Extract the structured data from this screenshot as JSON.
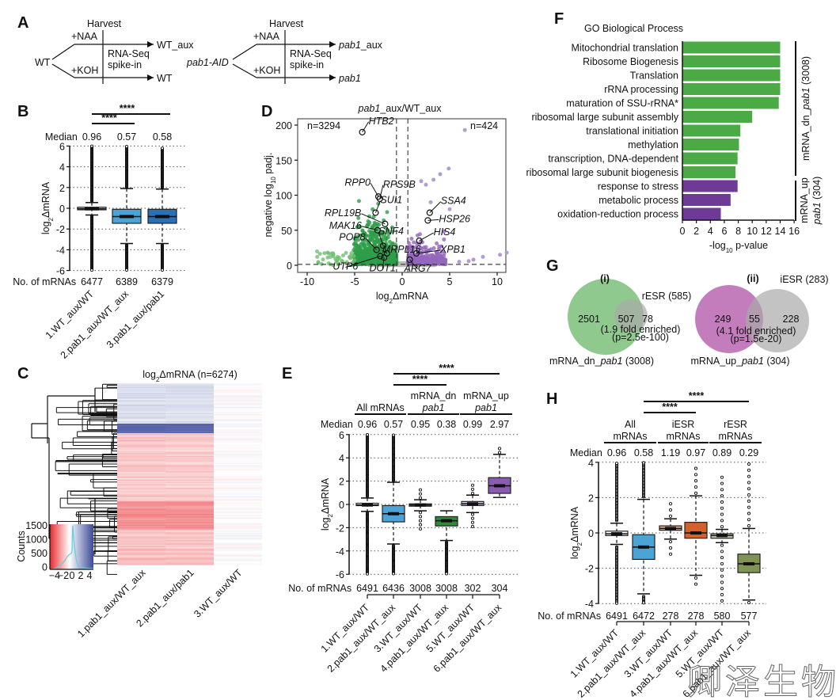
{
  "labels": [
    "A",
    "B",
    "C",
    "D",
    "E",
    "F",
    "G",
    "H"
  ],
  "panel_a": {
    "harvest": "Harvest",
    "naa": "+NAA",
    "koh": "+KOH",
    "wt": "WT",
    "wt_aux": "WT_aux",
    "wt_out": "WT",
    "rnaseq": "RNA-Seq",
    "spikein": "spike-in",
    "pab1_aid": "pab1-AID",
    "pab1_aux_pre": "pab1",
    "pab1_aux_post": "_aux",
    "pab1_out": "pab1"
  },
  "ylabel": {
    "pre": "log",
    "sub": "2",
    "post": "ΔmRNA"
  },
  "chart_data": [
    {
      "panel": "B",
      "type": "box",
      "ylim": [
        -6,
        6
      ],
      "yticks": [
        "6",
        "4",
        "2",
        "0",
        "-2",
        "-4",
        "-6"
      ],
      "grid": true,
      "median_label": "Median",
      "counts_label": "No. of mRNAs",
      "categories": [
        "1.WT_aux/WT",
        "2.pab1_aux/WT_aux",
        "3.pab1_aux/pab1"
      ],
      "medians": [
        "0.96",
        "0.57",
        "0.58"
      ],
      "counts": [
        "6477",
        "6389",
        "6379"
      ],
      "boxes": [
        {
          "q1": -0.15,
          "median": -0.05,
          "q3": 0.1,
          "whisker_low": -0.65,
          "whisker_high": 0.55,
          "outliers_to": [
            -6,
            6
          ]
        },
        {
          "q1": -1.45,
          "median": -0.8,
          "q3": -0.1,
          "whisker_low": -3.4,
          "whisker_high": 1.9,
          "outliers_to": [
            -6,
            6
          ]
        },
        {
          "q1": -1.45,
          "median": -0.8,
          "q3": -0.1,
          "whisker_low": -3.4,
          "whisker_high": 1.85,
          "outliers_to": [
            -6,
            5.8
          ]
        }
      ],
      "colors": [
        "#ffffff",
        "#4ba3d6",
        "#2a70b5"
      ],
      "significance": [
        {
          "from": 0,
          "to": 2,
          "label": "****"
        },
        {
          "from": 0,
          "to": 1,
          "label": "****"
        }
      ]
    },
    {
      "panel": "C",
      "type": "heatmap",
      "title_pre": "log",
      "title_sub": "2",
      "title_post": "ΔmRNA (n=6274)",
      "columns": [
        "1.pab1_aux/WT_aux",
        "2.pab1_aux/pab1",
        "3.WT_aux/WT"
      ],
      "colorbar": {
        "ylabel": "Counts",
        "yticks": [
          "1500",
          "1000",
          "500",
          "0"
        ],
        "xticks": [
          "−4",
          "−2",
          "0",
          "2",
          "4"
        ],
        "low": "#e8292d",
        "mid": "#ffffff",
        "high": "#3b4a9a",
        "density_color": "#6ccfdc"
      }
    },
    {
      "panel": "D",
      "type": "scatter",
      "title_pre": "pab1",
      "title_post": "_aux/WT_aux",
      "xlabel_pre": "log",
      "xlabel_sub": "2",
      "xlabel_post": "ΔmRNA",
      "ylabel_pre": "negative log",
      "ylabel_sub": "10",
      "ylabel_post": " padj.",
      "xlim": [
        -11,
        11
      ],
      "ylim": [
        -10,
        209
      ],
      "xticks": [
        "-10",
        "-5",
        "0",
        "5",
        "10"
      ],
      "yticks": [
        "0",
        "50",
        "100",
        "150",
        "200"
      ],
      "thresholds": {
        "x": [
          -0.6,
          0.6
        ],
        "y": 1.3
      },
      "n_down": "n=3294",
      "n_up": "n=424",
      "colors": {
        "down": "#2e9e4a",
        "up": "#9467bd",
        "ns": "#bbbbbb"
      },
      "genes": [
        {
          "name": "HTB2",
          "x": -4.2,
          "y": 190
        },
        {
          "name": "RPP0",
          "x": -2.5,
          "y": 98
        },
        {
          "name": "RPS9B",
          "x": -2.35,
          "y": 95
        },
        {
          "name": "SUI1",
          "x": -2.8,
          "y": 75
        },
        {
          "name": "RPL19B",
          "x": -1.8,
          "y": 59
        },
        {
          "name": "MAK16",
          "x": -2.6,
          "y": 50
        },
        {
          "name": "SNF4",
          "x": -2.0,
          "y": 28
        },
        {
          "name": "POP8",
          "x": -2.7,
          "y": 22
        },
        {
          "name": "MRPL16",
          "x": -1.6,
          "y": 17
        },
        {
          "name": "UTP6",
          "x": -2.3,
          "y": 13
        },
        {
          "name": "DOT1",
          "x": -1.9,
          "y": 11
        },
        {
          "name": "SSA4",
          "x": 2.9,
          "y": 75
        },
        {
          "name": "HSP26",
          "x": 2.7,
          "y": 64
        },
        {
          "name": "HIS4",
          "x": 1.8,
          "y": 35
        },
        {
          "name": "XPB1",
          "x": 1.5,
          "y": 17
        },
        {
          "name": "ARG7",
          "x": 0.8,
          "y": 8
        }
      ]
    },
    {
      "panel": "E",
      "type": "box",
      "ylim": [
        -6,
        6
      ],
      "yticks": [
        "6",
        "4",
        "2",
        "0",
        "-2",
        "-4",
        "-6"
      ],
      "grid": true,
      "median_label": "Median",
      "counts_label": "No. of mRNAs",
      "groups": [
        {
          "lines": [
            "All mRNAs"
          ]
        },
        {
          "lines": [
            "mRNA_dn",
            "pab1"
          ]
        },
        {
          "lines": [
            "mRNA_up",
            "pab1"
          ]
        }
      ],
      "categories": [
        "1.WT_aux/WT",
        "2.pab1_aux/WT_aux",
        "3.WT_aux/WT",
        "4.pab1_aux/WT_aux",
        "5.WT_aux/WT",
        "6.pab1_aux/WT_aux"
      ],
      "medians": [
        "0.96",
        "0.57",
        "0.95",
        "0.38",
        "0.99",
        "2.97"
      ],
      "counts": [
        "6491",
        "6436",
        "3008",
        "3008",
        "302",
        "304"
      ],
      "boxes": [
        {
          "q1": -0.1,
          "median": -0.05,
          "q3": 0.1,
          "whisker_low": -0.6,
          "whisker_high": 0.55,
          "outliers_to": [
            -6,
            6
          ]
        },
        {
          "q1": -1.5,
          "median": -0.8,
          "q3": -0.1,
          "whisker_low": -3.4,
          "whisker_high": 1.9,
          "outliers_to": [
            -6,
            6
          ]
        },
        {
          "q1": -0.15,
          "median": -0.05,
          "q3": 0.05,
          "whisker_low": -0.55,
          "whisker_high": 0.4,
          "outliers_to": [
            -2.3,
            1.5
          ]
        },
        {
          "q1": -1.85,
          "median": -1.4,
          "q3": -1.05,
          "whisker_low": -3.1,
          "whisker_high": -0.55,
          "outliers_to": [
            -6,
            -0.55
          ]
        },
        {
          "q1": -0.1,
          "median": 0.05,
          "q3": 0.25,
          "whisker_low": -0.7,
          "whisker_high": 0.8,
          "outliers_to": [
            -2,
            1.9
          ]
        },
        {
          "q1": 0.95,
          "median": 1.6,
          "q3": 2.3,
          "whisker_low": 0.6,
          "whisker_high": 4.3,
          "outliers_to": [
            0.6,
            4.9
          ]
        }
      ],
      "colors": [
        "#ffffff",
        "#4ba3d6",
        "#b9d9a3",
        "#2e8b3a",
        "#d5c2e6",
        "#8a5bb0"
      ],
      "significance": [
        {
          "from": 1,
          "to": 5,
          "label": "****"
        },
        {
          "from": 1,
          "to": 3,
          "label": "****"
        }
      ]
    },
    {
      "panel": "F",
      "type": "bar",
      "orientation": "horizontal",
      "title": "GO Biological Process",
      "xlabel_pre": "-log",
      "xlabel_sub": "10",
      "xlabel_post": " p-value",
      "xlim": [
        0,
        16
      ],
      "xticks": [
        "0",
        "2",
        "4",
        "6",
        "8",
        "10",
        "12",
        "14",
        "16"
      ],
      "categories": [
        "Mitochondrial translation",
        "Ribosome Biogenesis",
        "Translation",
        "rRNA processing",
        "maturation of SSU-rRNA*",
        "ribosomal large subunit assembly",
        "translational initiation",
        "methylation",
        "transcription, DNA-dependent",
        "ribosomal large subunit biogenesis",
        "response to stress",
        "metabolic process",
        "oxidation-reduction process"
      ],
      "values": [
        14,
        14,
        14,
        14,
        13.8,
        10,
        8.3,
        8.1,
        7.9,
        7.6,
        7.9,
        6.9,
        5.5
      ],
      "series_group": [
        "dn",
        "dn",
        "dn",
        "dn",
        "dn",
        "dn",
        "dn",
        "dn",
        "dn",
        "dn",
        "up",
        "up",
        "up"
      ],
      "group_labels": {
        "dn_pre": "mRNA_dn_",
        "dn_it": "pab1",
        "dn_post": " (3008)",
        "up_line1": "mRNA_up",
        "up_it": "pab1",
        "up_post": " (304)"
      },
      "colors": {
        "dn": "#4caa46",
        "up": "#6d3b96"
      }
    },
    {
      "panel": "G",
      "type": "venn",
      "i": {
        "title": "(i)",
        "set_a_pre": "mRNA_dn_",
        "set_a_it": "pab1",
        "set_a_post": " (3008)",
        "set_b": "rESR (585)",
        "only_a": "2501",
        "both": "507",
        "only_b": "78",
        "note1": "(1.9 fold enriched)",
        "note2": "(p=2.5e-100)"
      },
      "ii": {
        "title": "(ii)",
        "set_a_pre": "mRNA_up_",
        "set_a_it": "pab1",
        "set_a_post": " (304)",
        "set_b": "iESR (283)",
        "only_a": "249",
        "both": "55",
        "only_b": "228",
        "note1": "(4.1 fold enriched)",
        "note2": "(p=1.5e-20)"
      },
      "colors": {
        "dn": "#7cc07a",
        "up": "#b865b0",
        "esr": "#a9a9a9"
      }
    },
    {
      "panel": "H",
      "type": "box",
      "ylim": [
        -4,
        4
      ],
      "yticks": [
        "4",
        "2",
        "0",
        "-2",
        "-4"
      ],
      "grid": true,
      "median_label": "Median",
      "counts_label": "No. of mRNAs",
      "groups": [
        {
          "lines": [
            "All",
            "mRNAs"
          ]
        },
        {
          "lines": [
            "iESR",
            "mRNAs"
          ]
        },
        {
          "lines": [
            "rESR",
            "mRNAs"
          ]
        }
      ],
      "categories": [
        "1.WT_aux/WT",
        "2.pab1_aux/WT_aux",
        "3.WT_aux/WT",
        "4.pab1_aux/WT_aux",
        "5.WT_aux/WT",
        "6.pab1_aux/WT_aux"
      ],
      "medians": [
        "0.96",
        "0.58",
        "1.19",
        "0.97",
        "0.89",
        "0.29"
      ],
      "counts": [
        "6491",
        "6472",
        "278",
        "278",
        "580",
        "577"
      ],
      "boxes": [
        {
          "q1": -0.15,
          "median": -0.05,
          "q3": 0.1,
          "whisker_low": -0.65,
          "whisker_high": 0.55,
          "outliers_to": [
            -4,
            4
          ]
        },
        {
          "q1": -1.5,
          "median": -0.8,
          "q3": -0.1,
          "whisker_low": -3.45,
          "whisker_high": 1.9,
          "outliers_to": [
            -4,
            4
          ]
        },
        {
          "q1": 0.15,
          "median": 0.25,
          "q3": 0.4,
          "whisker_low": -0.35,
          "whisker_high": 0.8,
          "outliers_to": [
            -1.4,
            1.8
          ]
        },
        {
          "q1": -0.3,
          "median": 0.0,
          "q3": 0.6,
          "whisker_low": -2.4,
          "whisker_high": 2.1,
          "outliers_to": [
            -2.9,
            3.8
          ]
        },
        {
          "q1": -0.3,
          "median": -0.15,
          "q3": -0.05,
          "whisker_low": -0.55,
          "whisker_high": 0.2,
          "outliers_to": [
            -4.1,
            3.2
          ]
        },
        {
          "q1": -2.25,
          "median": -1.75,
          "q3": -1.2,
          "whisker_low": -3.8,
          "whisker_high": 0.25,
          "outliers_to": [
            -4,
            4
          ]
        }
      ],
      "colors": [
        "#ffffff",
        "#4ba3d6",
        "#e9a98b",
        "#d2622a",
        "#cdd3ad",
        "#7f9455"
      ],
      "significance": [
        {
          "from": 1,
          "to": 5,
          "label": "****"
        },
        {
          "from": 1,
          "to": 3,
          "label": "****"
        }
      ]
    }
  ],
  "watermark": "卿泽生物"
}
